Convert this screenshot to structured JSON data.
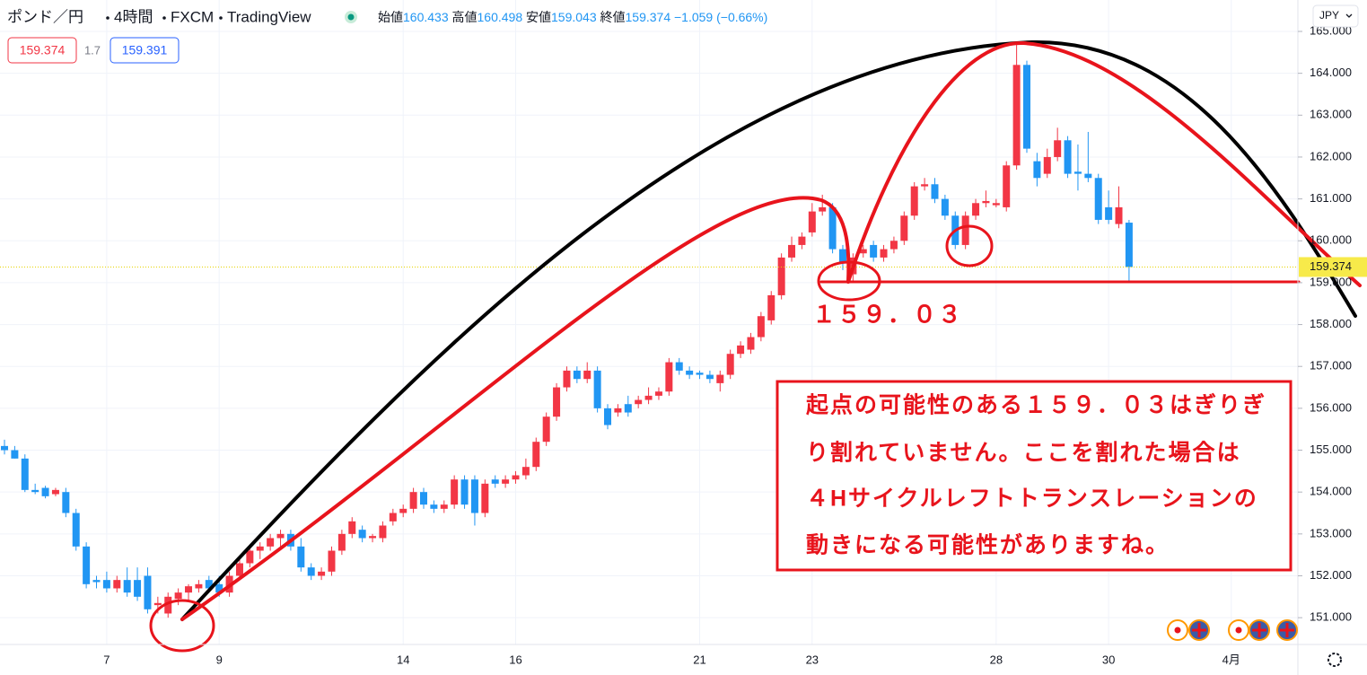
{
  "chart_data": {
    "type": "candlestick",
    "symbol": "ポンド／円",
    "interval": "4時間",
    "broker": "FXCM",
    "platform": "TradingView",
    "ohlc_labels": [
      "始値",
      "高値",
      "安値",
      "終値"
    ],
    "change_label": "−1.059 (−0.66%)",
    "bid": 159.374,
    "spread": 1.7,
    "ask": 159.391,
    "currency": "JPY",
    "categories": [
      null,
      null,
      null,
      null,
      null,
      null,
      null,
      null,
      null,
      null,
      "7",
      null,
      null,
      null,
      null,
      null,
      null,
      null,
      null,
      null,
      null,
      "9",
      null,
      null,
      null,
      null,
      null,
      null,
      null,
      null,
      null,
      null,
      null,
      null,
      null,
      null,
      null,
      null,
      null,
      "14",
      null,
      null,
      null,
      null,
      null,
      null,
      null,
      null,
      null,
      null,
      "16",
      null,
      null,
      null,
      null,
      null,
      null,
      null,
      null,
      null,
      null,
      null,
      null,
      null,
      null,
      null,
      null,
      null,
      "21",
      null,
      null,
      null,
      null,
      null,
      null,
      null,
      null,
      null,
      null,
      "23",
      null,
      null,
      null,
      null,
      null,
      null,
      null,
      null,
      null,
      null,
      null,
      null,
      null,
      null,
      null,
      null,
      null,
      "28",
      null,
      null,
      null,
      null,
      null,
      null,
      null,
      null,
      null,
      null,
      "30",
      null,
      null,
      null,
      null,
      null,
      null,
      null,
      null,
      null,
      null,
      null,
      "4月",
      null,
      null,
      null,
      null,
      null,
      null
    ],
    "open": [
      155.1,
      155.0,
      154.8,
      154.05,
      154.1,
      153.95,
      154.0,
      153.5,
      152.7,
      151.9,
      151.9,
      151.7,
      151.9,
      151.9,
      152.0,
      151.3,
      151.1,
      151.45,
      151.6,
      151.7,
      151.9,
      151.8,
      151.6,
      152.0,
      152.3,
      152.6,
      152.7,
      152.9,
      153.0,
      152.7,
      152.2,
      152.0,
      152.1,
      152.6,
      153.0,
      153.1,
      152.9,
      152.9,
      153.3,
      153.5,
      153.6,
      154.0,
      153.7,
      153.6,
      153.7,
      154.3,
      154.3,
      153.5,
      154.3,
      154.2,
      154.3,
      154.4,
      154.6,
      155.2,
      155.8,
      156.5,
      156.9,
      156.7,
      156.9,
      156.0,
      155.9,
      156.1,
      156.1,
      156.2,
      156.3,
      156.4,
      157.1,
      156.9,
      156.85,
      156.8,
      156.6,
      156.8,
      157.3,
      157.4,
      157.7,
      158.1,
      158.7,
      159.6,
      159.9,
      160.2,
      160.7,
      160.8,
      159.8,
      159.2,
      159.7,
      159.9,
      159.6,
      159.8,
      160.0,
      160.6,
      161.3,
      161.35,
      161.0,
      160.6,
      159.9,
      160.6,
      160.9,
      160.85,
      160.8,
      161.8,
      164.2,
      161.9,
      161.6,
      162.0,
      162.4,
      161.65,
      161.6,
      161.5,
      160.8,
      160.4,
      160.433,
      null,
      null,
      null,
      null,
      null,
      null,
      null,
      null,
      null,
      null,
      null,
      null,
      null,
      null,
      null,
      null
    ],
    "high": [
      155.25,
      155.1,
      154.9,
      154.2,
      154.15,
      154.1,
      154.1,
      153.6,
      152.8,
      152.0,
      152.1,
      152.0,
      152.2,
      152.2,
      152.2,
      151.5,
      151.6,
      151.7,
      151.8,
      151.9,
      152.0,
      152.0,
      152.1,
      152.4,
      152.7,
      152.8,
      153.0,
      153.1,
      153.1,
      152.9,
      152.3,
      152.2,
      152.7,
      153.1,
      153.4,
      153.2,
      153.0,
      153.3,
      153.6,
      153.7,
      154.1,
      154.1,
      153.8,
      153.8,
      154.4,
      154.4,
      154.4,
      154.3,
      154.4,
      154.4,
      154.5,
      154.8,
      155.3,
      155.9,
      156.6,
      157.0,
      157.0,
      157.1,
      157.0,
      156.1,
      156.1,
      156.3,
      156.3,
      156.5,
      156.5,
      157.2,
      157.2,
      157.0,
      156.9,
      156.9,
      156.9,
      157.4,
      157.6,
      157.8,
      158.3,
      158.8,
      159.7,
      160.1,
      160.2,
      160.9,
      161.1,
      160.9,
      159.9,
      159.7,
      159.9,
      160.0,
      159.9,
      160.1,
      160.7,
      161.4,
      161.5,
      161.5,
      161.1,
      160.7,
      160.7,
      161.0,
      161.2,
      161.0,
      161.9,
      164.7,
      164.3,
      162.1,
      162.2,
      162.7,
      162.5,
      162.3,
      162.6,
      161.6,
      161.2,
      161.3,
      160.498,
      null,
      null,
      null,
      null,
      null,
      null,
      null,
      null,
      null,
      null,
      null,
      null,
      null,
      null,
      null,
      null
    ],
    "low": [
      154.9,
      154.8,
      154.0,
      153.95,
      153.85,
      153.9,
      153.4,
      152.6,
      151.7,
      151.7,
      151.6,
      151.6,
      151.5,
      151.4,
      151.1,
      151.1,
      151.0,
      151.3,
      151.4,
      151.6,
      151.6,
      151.5,
      151.5,
      151.9,
      152.2,
      152.4,
      152.6,
      152.7,
      152.6,
      152.1,
      151.9,
      151.9,
      152.0,
      152.5,
      152.9,
      152.8,
      152.8,
      152.8,
      153.2,
      153.4,
      153.5,
      153.6,
      153.5,
      153.5,
      153.6,
      153.6,
      153.2,
      153.4,
      154.1,
      154.1,
      154.2,
      154.3,
      154.5,
      155.1,
      155.7,
      156.4,
      156.6,
      156.6,
      155.9,
      155.5,
      155.8,
      155.8,
      156.0,
      156.1,
      156.2,
      156.3,
      156.8,
      156.7,
      156.7,
      156.6,
      156.4,
      156.7,
      157.2,
      157.3,
      157.6,
      158.0,
      158.6,
      159.5,
      159.8,
      160.1,
      160.6,
      159.7,
      159.3,
      159.03,
      159.6,
      159.5,
      159.5,
      159.7,
      159.9,
      160.5,
      161.2,
      160.9,
      160.5,
      159.8,
      159.8,
      160.5,
      160.8,
      160.8,
      160.7,
      161.7,
      162.1,
      161.3,
      161.5,
      161.9,
      161.5,
      161.2,
      161.4,
      160.4,
      160.4,
      160.3,
      159.043,
      null,
      null,
      null,
      null,
      null,
      null,
      null,
      null,
      null,
      null,
      null,
      null,
      null,
      null,
      null,
      null
    ],
    "close": [
      155.0,
      154.8,
      154.05,
      154.0,
      153.9,
      154.05,
      153.5,
      152.7,
      151.8,
      151.85,
      151.7,
      151.9,
      151.6,
      151.5,
      151.2,
      151.35,
      151.5,
      151.6,
      151.75,
      151.8,
      151.7,
      151.6,
      152.0,
      152.3,
      152.6,
      152.7,
      152.9,
      153.0,
      152.7,
      152.2,
      152.0,
      152.1,
      152.6,
      153.0,
      153.3,
      152.9,
      152.95,
      153.2,
      153.5,
      153.6,
      154.0,
      153.7,
      153.6,
      153.7,
      154.3,
      153.7,
      153.5,
      154.2,
      154.2,
      154.3,
      154.4,
      154.6,
      155.2,
      155.8,
      156.5,
      156.9,
      156.7,
      156.9,
      156.0,
      155.6,
      156.0,
      155.9,
      156.2,
      156.3,
      156.4,
      157.1,
      156.9,
      156.8,
      156.8,
      156.7,
      156.8,
      157.3,
      157.5,
      157.7,
      158.2,
      158.7,
      159.6,
      159.9,
      160.1,
      160.7,
      160.8,
      159.8,
      159.5,
      159.6,
      159.8,
      159.6,
      159.8,
      160.0,
      160.6,
      161.3,
      161.35,
      161.0,
      160.6,
      159.9,
      160.6,
      160.9,
      160.95,
      160.9,
      161.8,
      164.2,
      162.2,
      161.5,
      162.0,
      162.4,
      161.6,
      161.6,
      161.5,
      160.5,
      160.5,
      160.8,
      159.374,
      null,
      null,
      null,
      null,
      null,
      null,
      null,
      null,
      null,
      null,
      null,
      null,
      null,
      null,
      null,
      null
    ],
    "up_color": "#f23645",
    "down_color": "#2196f3",
    "ylim": [
      150.36,
      165.75
    ],
    "yticks": [
      {
        "value": 151,
        "label": "151.000"
      },
      {
        "value": 152,
        "label": "152.000"
      },
      {
        "value": 153,
        "label": "153.000"
      },
      {
        "value": 154,
        "label": "154.000"
      },
      {
        "value": 155,
        "label": "155.000"
      },
      {
        "value": 156,
        "label": "156.000"
      },
      {
        "value": 157,
        "label": "157.000"
      },
      {
        "value": 158,
        "label": "158.000"
      },
      {
        "value": 159,
        "label": "159.000"
      },
      {
        "value": 160,
        "label": "160.000"
      },
      {
        "value": 161,
        "label": "161.000"
      },
      {
        "value": 162,
        "label": "162.000"
      },
      {
        "value": 163,
        "label": "163.000"
      },
      {
        "value": 164,
        "label": "164.000"
      },
      {
        "value": 165,
        "label": "165.000"
      }
    ],
    "grid": true,
    "annotations": {
      "level_label": "１５９．０３",
      "note_lines": [
        "起点の可能性のある１５９．０３はぎりぎ",
        "り割れていません。ここを割れた場合は",
        "４Hサイクルレフトトランスレーションの",
        "動きになる可能性がありますね。"
      ]
    }
  }
}
